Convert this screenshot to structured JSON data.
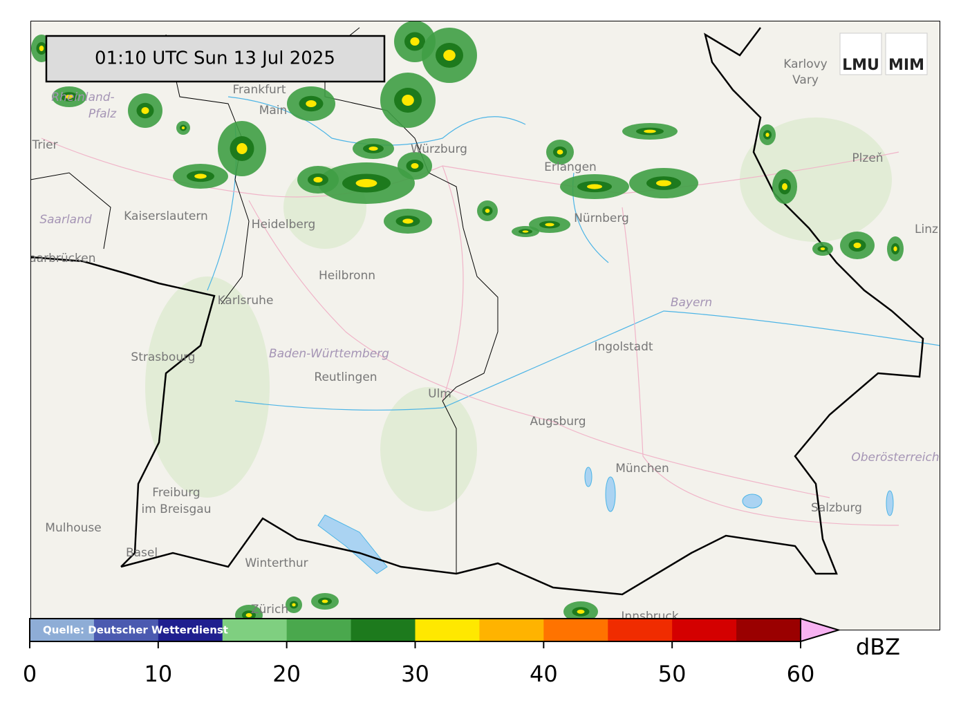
{
  "timestamp": "01:10 UTC  Sun 13 Jul 2025",
  "logos": [
    "LMU",
    "MIM"
  ],
  "places": [
    "Karlovy",
    "Vary",
    "Plzeň",
    "Rheinland-",
    "Pfalz",
    "Trier",
    "Saarland",
    "Kaiserslautern",
    "Frankfurt",
    "Main",
    "Heidelberg",
    "Würzburg",
    "Erlangen",
    "Nürnberg",
    "Saarbrücken",
    "Heilbronn",
    "Karlsruhe",
    "Bayern",
    "Strasbourg",
    "Baden-Württemberg",
    "Reutlingen",
    "Ulm",
    "Ingolstadt",
    "Augsburg",
    "München",
    "Oberösterreich",
    "Freiburg",
    "im Breisgau",
    "Mulhouse",
    "Basel",
    "Winterthur",
    "Zürich",
    "Salzburg",
    "Innsbruck",
    "Linz"
  ],
  "colorbar": {
    "source": "Quelle: Deutscher Wetterdienst",
    "unit": "dBZ",
    "clim": [
      0,
      60
    ],
    "ticks": [
      0,
      10,
      20,
      30,
      40,
      50,
      60
    ],
    "colors": [
      "#8eadd6",
      "#4b5ab0",
      "#1f1f8f",
      "#7fcf80",
      "#4aa84d",
      "#1d7a1d",
      "#ffe800",
      "#ffb300",
      "#ff7300",
      "#f02c00",
      "#d40000",
      "#9a0000"
    ],
    "extend_color": "#f7b2f2"
  }
}
